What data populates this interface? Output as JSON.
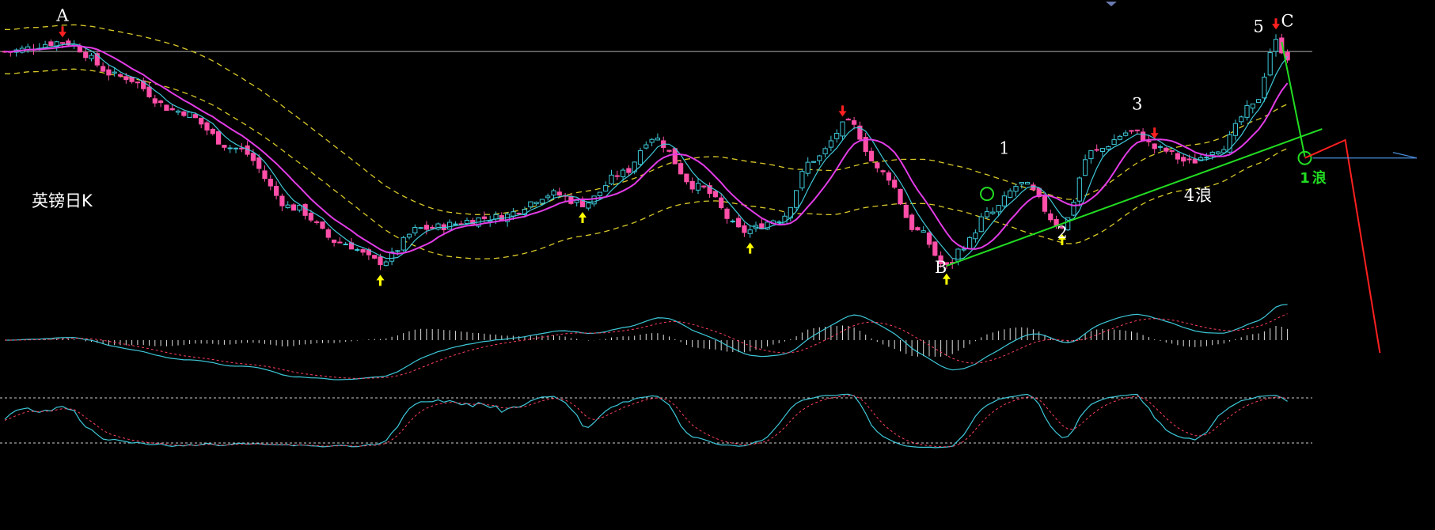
{
  "chart_data": {
    "type": "candlestick",
    "title": "英镑日K",
    "colors": {
      "background": "#000000",
      "up": "#3ec8d8",
      "down": "#ff4fa8",
      "ma_short": "#3ec8d8",
      "ma_mid": "#e23ce6",
      "band": "#d8c828",
      "level": "#b0b0b0",
      "trendline": "#22dd22",
      "projection": "#ff2020",
      "extension": "#4a90e0",
      "sell_arrow": "#ff2020",
      "buy_arrow": "#ffff00",
      "macd_dif": "#3ec8d8",
      "macd_dea": "#ff4060",
      "kdj_k": "#3ec8d8",
      "kdj_d": "#ff4060"
    },
    "wave_labels": [
      {
        "text": "A",
        "x": 10,
        "y": 1.64
      },
      {
        "text": "B",
        "x": 162,
        "y": 1.458
      },
      {
        "text": "C",
        "x": 222,
        "y": 1.636
      },
      {
        "text": "1",
        "x": 173,
        "y": 1.544
      },
      {
        "text": "2",
        "x": 183,
        "y": 1.483
      },
      {
        "text": "3",
        "x": 196,
        "y": 1.576
      },
      {
        "text": "4",
        "x": 205,
        "y": 1.51
      },
      {
        "text": "浪",
        "x": 207.5,
        "y": 1.51
      },
      {
        "text": "5",
        "x": 217,
        "y": 1.632
      },
      {
        "text": "1",
        "x": 225,
        "y": 1.523
      },
      {
        "text": "浪",
        "x": 227.5,
        "y": 1.523
      }
    ],
    "sell_signals": [
      10,
      145,
      220,
      199
    ],
    "buy_signals": [
      65,
      100,
      129,
      163,
      183
    ],
    "ohlc_series": "daily candles, price range approx 1.460 to 1.640",
    "price_range": [
      1.455,
      1.645
    ],
    "indicator_panels": [
      "MACD",
      "KDJ"
    ]
  }
}
